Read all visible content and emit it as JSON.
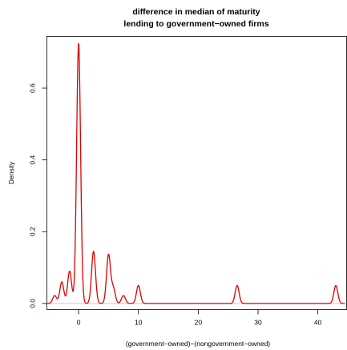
{
  "chart_data": {
    "type": "line",
    "title": "difference in median of maturity",
    "subtitle": "lending to government−owned firms",
    "xlabel": "(government−owned)−(nongovernment−owned)",
    "ylabel": "Density",
    "xlim": [
      -5.3,
      44.8
    ],
    "ylim": [
      -0.017,
      0.744
    ],
    "x_ticks": [
      0,
      10,
      20,
      30,
      40
    ],
    "y_ticks": [
      0.0,
      0.2,
      0.4,
      0.6
    ],
    "x_tick_labels": [
      "0",
      "10",
      "20",
      "30",
      "40"
    ],
    "y_tick_labels": [
      "0.0",
      "0.2",
      "0.4",
      "0.6"
    ],
    "series": [
      {
        "color": "#dd0000",
        "peaks": [
          {
            "x": -4.0,
            "height": 0.022
          },
          {
            "x": -2.8,
            "height": 0.06
          },
          {
            "x": -1.5,
            "height": 0.09
          },
          {
            "x": 0.0,
            "height": 0.725
          },
          {
            "x": 2.5,
            "height": 0.145
          },
          {
            "x": 5.0,
            "height": 0.135
          },
          {
            "x": 5.8,
            "height": 0.042
          },
          {
            "x": 7.5,
            "height": 0.022
          },
          {
            "x": 10.0,
            "height": 0.05
          },
          {
            "x": 26.5,
            "height": 0.05
          },
          {
            "x": 43.0,
            "height": 0.05
          }
        ],
        "bandwidth": 0.33
      }
    ],
    "grid": false,
    "legend": "none"
  }
}
